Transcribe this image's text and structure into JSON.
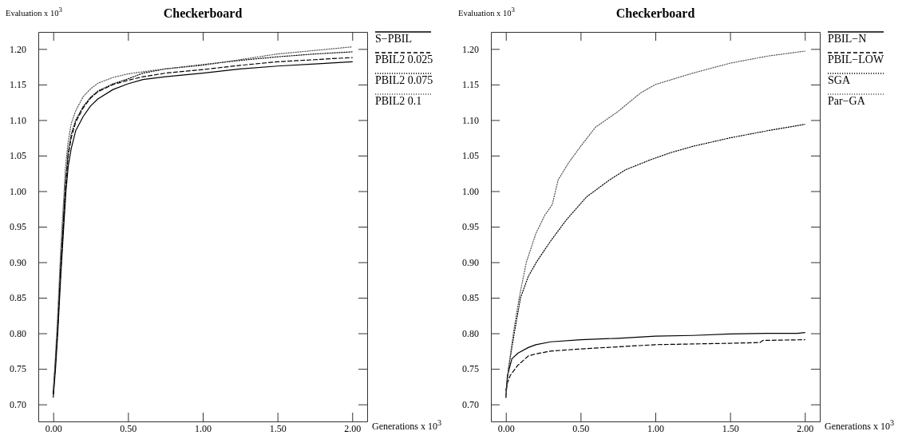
{
  "chart_data": [
    {
      "type": "line",
      "title": "Checkerboard",
      "xlabel": "Generations x 10$^{3}$",
      "ylabel": "Evaluation x 10$^{3}$",
      "legend": "top right",
      "xlim": [
        -0.1,
        2.1
      ],
      "ylim": [
        0.676,
        1.224
      ],
      "xticks": [
        {
          "value": 0,
          "label": "0.00"
        },
        {
          "value": 0.5,
          "label": "0.50"
        },
        {
          "value": 1,
          "label": "1.00"
        },
        {
          "value": 1.5,
          "label": "1.50"
        },
        {
          "value": 2,
          "label": "2.00"
        }
      ],
      "yticks": [
        {
          "value": 0.7,
          "label": "0.70"
        },
        {
          "value": 0.75,
          "label": "0.75"
        },
        {
          "value": 0.8,
          "label": "0.80"
        },
        {
          "value": 0.85,
          "label": "0.85"
        },
        {
          "value": 0.9,
          "label": "0.90"
        },
        {
          "value": 0.95,
          "label": "0.95"
        },
        {
          "value": 1.0,
          "label": "1.00"
        },
        {
          "value": 1.05,
          "label": "1.05"
        },
        {
          "value": 1.1,
          "label": "1.10"
        },
        {
          "value": 1.15,
          "label": "1.15"
        },
        {
          "value": 1.2,
          "label": "1.20"
        }
      ],
      "series": [
        {
          "name": "S−PBIL",
          "color": "#000000",
          "line_style": "solid",
          "x": [
            0,
            0.015,
            0.03,
            0.05,
            0.07,
            0.085,
            0.1,
            0.12,
            0.15,
            0.2,
            0.25,
            0.3,
            0.4,
            0.5,
            0.6,
            0.75,
            1.0,
            1.25,
            1.5,
            1.75,
            2.0
          ],
          "values": [
            0.71,
            0.75,
            0.8,
            0.88,
            0.95,
            1.0,
            1.035,
            1.06,
            1.085,
            1.105,
            1.12,
            1.13,
            1.143,
            1.151,
            1.157,
            1.161,
            1.166,
            1.172,
            1.176,
            1.179,
            1.182
          ]
        },
        {
          "name": "PBIL2 0.025",
          "color": "#000000",
          "line_style": "dashed",
          "x": [
            0,
            0.015,
            0.03,
            0.05,
            0.07,
            0.08,
            0.1,
            0.12,
            0.15,
            0.2,
            0.25,
            0.3,
            0.4,
            0.5,
            0.6,
            0.75,
            1.0,
            1.25,
            1.5,
            1.75,
            2.0
          ],
          "values": [
            0.715,
            0.76,
            0.81,
            0.89,
            0.96,
            1.0,
            1.05,
            1.075,
            1.097,
            1.117,
            1.131,
            1.14,
            1.15,
            1.156,
            1.161,
            1.166,
            1.171,
            1.177,
            1.182,
            1.185,
            1.188
          ]
        },
        {
          "name": "PBIL2 0.075",
          "color": "#000000",
          "line_style": "dotted",
          "x": [
            0,
            0.015,
            0.03,
            0.05,
            0.07,
            0.08,
            0.1,
            0.12,
            0.15,
            0.2,
            0.25,
            0.3,
            0.4,
            0.5,
            0.6,
            0.75,
            1.0,
            1.25,
            1.5,
            1.75,
            2.0
          ],
          "values": [
            0.715,
            0.76,
            0.81,
            0.9,
            0.97,
            1.01,
            1.055,
            1.08,
            1.1,
            1.119,
            1.132,
            1.141,
            1.151,
            1.158,
            1.166,
            1.172,
            1.178,
            1.184,
            1.189,
            1.193,
            1.196
          ]
        },
        {
          "name": "PBIL2  0.1",
          "color": "#555555",
          "line_style": "dotted",
          "x": [
            0,
            0.015,
            0.03,
            0.05,
            0.07,
            0.08,
            0.1,
            0.12,
            0.15,
            0.2,
            0.25,
            0.3,
            0.4,
            0.5,
            0.6,
            0.75,
            1.0,
            1.25,
            1.5,
            1.75,
            2.0
          ],
          "values": [
            0.72,
            0.77,
            0.83,
            0.92,
            0.99,
            1.03,
            1.07,
            1.095,
            1.113,
            1.133,
            1.144,
            1.152,
            1.16,
            1.165,
            1.168,
            1.172,
            1.177,
            1.185,
            1.193,
            1.198,
            1.203
          ]
        }
      ]
    },
    {
      "type": "line",
      "title": "Checkerboard",
      "xlabel": "Generations x 10$^{3}$",
      "ylabel": "Evaluation x 10$^{3}$",
      "legend": "top right",
      "xlim": [
        -0.1,
        2.1
      ],
      "ylim": [
        0.676,
        1.224
      ],
      "xticks": [
        {
          "value": 0,
          "label": "0.00"
        },
        {
          "value": 0.5,
          "label": "0.50"
        },
        {
          "value": 1,
          "label": "1.00"
        },
        {
          "value": 1.5,
          "label": "1.50"
        },
        {
          "value": 2,
          "label": "2.00"
        }
      ],
      "yticks": [
        {
          "value": 0.7,
          "label": "0.70"
        },
        {
          "value": 0.75,
          "label": "0.75"
        },
        {
          "value": 0.8,
          "label": "0.80"
        },
        {
          "value": 0.85,
          "label": "0.85"
        },
        {
          "value": 0.9,
          "label": "0.90"
        },
        {
          "value": 0.95,
          "label": "0.95"
        },
        {
          "value": 1.0,
          "label": "1.00"
        },
        {
          "value": 1.05,
          "label": "1.05"
        },
        {
          "value": 1.1,
          "label": "1.10"
        },
        {
          "value": 1.15,
          "label": "1.15"
        },
        {
          "value": 1.2,
          "label": "1.20"
        }
      ],
      "series": [
        {
          "name": "PBIL−N",
          "color": "#000000",
          "line_style": "solid",
          "x": [
            0,
            0.01,
            0.04,
            0.08,
            0.15,
            0.2,
            0.3,
            0.5,
            0.75,
            1.0,
            1.25,
            1.5,
            1.75,
            1.95,
            2.0
          ],
          "values": [
            0.71,
            0.74,
            0.764,
            0.772,
            0.78,
            0.784,
            0.788,
            0.791,
            0.793,
            0.796,
            0.797,
            0.799,
            0.8,
            0.8,
            0.801
          ]
        },
        {
          "name": "PBIL−LOW",
          "color": "#000000",
          "line_style": "dashed",
          "x": [
            0,
            0.01,
            0.03,
            0.08,
            0.15,
            0.2,
            0.3,
            0.5,
            0.75,
            1.0,
            1.25,
            1.5,
            1.7,
            1.72,
            2.0
          ],
          "values": [
            0.72,
            0.73,
            0.741,
            0.755,
            0.768,
            0.771,
            0.775,
            0.778,
            0.781,
            0.784,
            0.785,
            0.786,
            0.787,
            0.79,
            0.791
          ]
        },
        {
          "name": "SGA",
          "color": "#000000",
          "line_style": "dotted",
          "x": [
            0,
            0.017,
            0.056,
            0.098,
            0.15,
            0.204,
            0.3,
            0.406,
            0.54,
            0.695,
            0.8,
            0.965,
            1.1,
            1.25,
            1.5,
            1.75,
            2.0
          ],
          "values": [
            0.71,
            0.75,
            0.8,
            0.85,
            0.88,
            0.9,
            0.93,
            0.96,
            0.992,
            1.016,
            1.03,
            1.044,
            1.054,
            1.063,
            1.075,
            1.085,
            1.094
          ]
        },
        {
          "name": "Par−GA",
          "color": "#555555",
          "line_style": "dotted",
          "x": [
            0,
            0.017,
            0.05,
            0.089,
            0.137,
            0.2,
            0.26,
            0.31,
            0.35,
            0.42,
            0.5,
            0.6,
            0.75,
            0.9,
            1.0,
            1.25,
            1.5,
            1.75,
            2.0
          ],
          "values": [
            0.71,
            0.75,
            0.8,
            0.85,
            0.9,
            0.94,
            0.966,
            0.981,
            1.016,
            1.04,
            1.063,
            1.09,
            1.112,
            1.138,
            1.15,
            1.166,
            1.18,
            1.19,
            1.197
          ]
        }
      ]
    }
  ]
}
